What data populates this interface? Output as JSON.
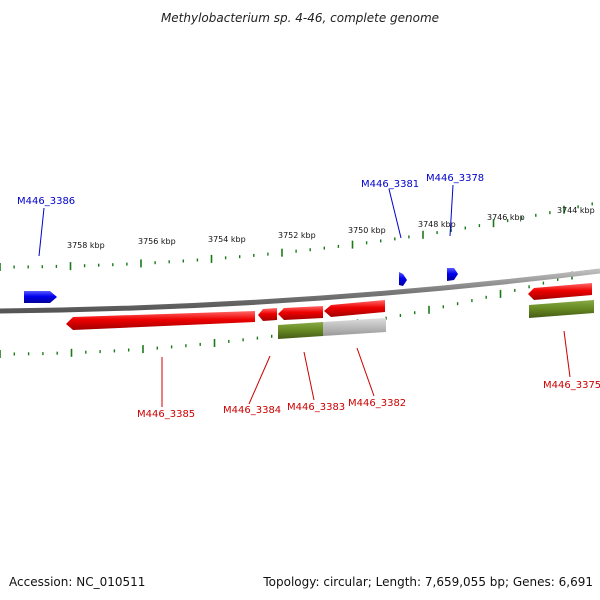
{
  "title": "Methylobacterium sp. 4-46, complete genome",
  "footer": {
    "accession": "Accession: NC_010511",
    "summary": "Topology: circular; Length: 7,659,055 bp; Genes: 6,691"
  },
  "colors": {
    "forward_gene": "#0000ff",
    "reverse_gene": "#ee0000",
    "cds_green": "#668822",
    "cds_gray": "#bbbbbb",
    "tick_green": "#1a7a1a",
    "backbone": "#888888"
  },
  "scale_ticks": [
    "3758 kbp",
    "3756 kbp",
    "3754 kbp",
    "3752 kbp",
    "3750 kbp",
    "3748 kbp",
    "3746 kbp",
    "3744 kbp"
  ],
  "genes": [
    {
      "id": "M446_3386",
      "strand": "forward"
    },
    {
      "id": "M446_3381",
      "strand": "forward"
    },
    {
      "id": "M446_3378",
      "strand": "forward"
    },
    {
      "id": "M446_3385",
      "strand": "reverse"
    },
    {
      "id": "M446_3384",
      "strand": "reverse"
    },
    {
      "id": "M446_3383",
      "strand": "reverse"
    },
    {
      "id": "M446_3382",
      "strand": "reverse"
    },
    {
      "id": "M446_3375",
      "strand": "reverse"
    }
  ]
}
